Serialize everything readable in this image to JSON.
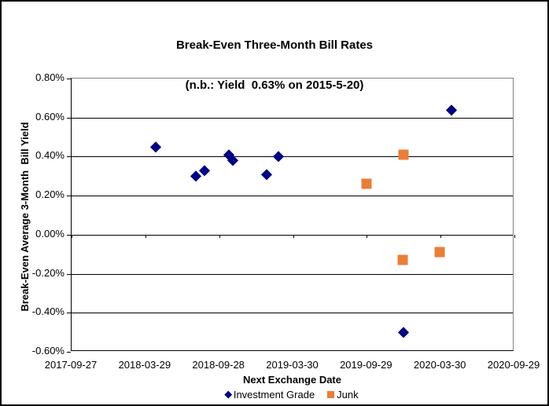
{
  "window": {
    "background": "#FFFFFF",
    "border_color": "#000000"
  },
  "colors": {
    "gridline": "#000000",
    "plot_border": "#848484",
    "axis_line": "#000000",
    "text": "#000000",
    "investment_grade": "#000080",
    "junk": "#E87E38"
  },
  "chart_data": {
    "type": "scatter",
    "title": "Break-Even Three-Month Bill Rates",
    "subtitle": "(n.b.: Yield  0.63% on 2015-5-20)",
    "xlabel": "Next Exchange Date",
    "ylabel": "Break-Even Average 3-Month  Bill Yield",
    "grid": "horizontal",
    "x_axis": {
      "type": "date",
      "min": "2017-09-27",
      "max": "2020-09-29",
      "tick_labels": [
        "2017-09-27",
        "2018-03-29",
        "2018-09-28",
        "2019-03-30",
        "2019-09-29",
        "2020-03-30",
        "2020-09-29"
      ],
      "axis_line_at_y": 0,
      "tick_marks": "below-zero-line"
    },
    "y_axis": {
      "min": -0.6,
      "max": 0.8,
      "tick_step": 0.2,
      "unit": "percent",
      "tick_values": [
        0.8,
        0.6,
        0.4,
        0.2,
        0,
        -0.2,
        -0.4,
        -0.6
      ],
      "tick_labels": [
        "0.80%",
        "0.60%",
        "0.40%",
        "0.20%",
        "0.00%",
        "-0.20%",
        "-0.40%",
        "-0.60%"
      ]
    },
    "series": [
      {
        "name": "Investment Grade",
        "marker": "diamond",
        "color": "#000080",
        "points": [
          {
            "x": "2018-04-23",
            "y": 0.45
          },
          {
            "x": "2018-08-01",
            "y": 0.3
          },
          {
            "x": "2018-08-22",
            "y": 0.33
          },
          {
            "x": "2018-10-22",
            "y": 0.41
          },
          {
            "x": "2018-10-31",
            "y": 0.38
          },
          {
            "x": "2019-01-23",
            "y": 0.31
          },
          {
            "x": "2019-02-22",
            "y": 0.4
          },
          {
            "x": "2019-12-29",
            "y": -0.5
          },
          {
            "x": "2020-04-26",
            "y": 0.64
          }
        ]
      },
      {
        "name": "Junk",
        "marker": "square",
        "color": "#E87E38",
        "points": [
          {
            "x": "2019-09-29",
            "y": 0.26
          },
          {
            "x": "2019-12-29",
            "y": 0.41
          },
          {
            "x": "2019-12-28",
            "y": -0.13
          },
          {
            "x": "2020-03-28",
            "y": -0.09
          }
        ]
      }
    ],
    "legend": {
      "position": "bottom",
      "entries": [
        "Investment Grade",
        "Junk"
      ]
    }
  }
}
